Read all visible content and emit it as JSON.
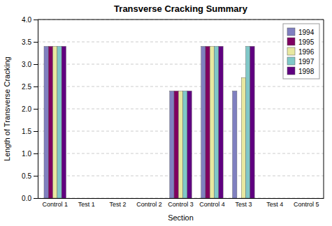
{
  "chart_data": {
    "type": "bar",
    "title": "Transverse Cracking Summary",
    "xlabel": "Section",
    "ylabel": "Length of Transverse Cracking",
    "categories": [
      "Control 1",
      "Test 1",
      "Test 2",
      "Control 2",
      "Control 3",
      "Control 4",
      "Test 3",
      "Test 4",
      "Control 5"
    ],
    "series": [
      {
        "name": "1994",
        "color": "#8080c0",
        "values": [
          3.4,
          0,
          0,
          0,
          2.4,
          3.4,
          2.4,
          0,
          0
        ]
      },
      {
        "name": "1995",
        "color": "#800060",
        "values": [
          3.4,
          0,
          0,
          0,
          2.4,
          3.4,
          0,
          0,
          0
        ]
      },
      {
        "name": "1996",
        "color": "#e8e8a0",
        "values": [
          3.4,
          0,
          0,
          0,
          2.4,
          3.4,
          2.7,
          0,
          0
        ]
      },
      {
        "name": "1997",
        "color": "#80c8c8",
        "values": [
          3.4,
          0,
          0,
          0,
          2.4,
          3.4,
          3.4,
          0,
          0
        ]
      },
      {
        "name": "1998",
        "color": "#600080",
        "values": [
          3.4,
          0,
          0,
          0,
          2.4,
          3.4,
          3.4,
          0,
          0
        ]
      }
    ],
    "ylim": [
      0,
      4.0
    ],
    "yticks": [
      {
        "value": 0.0,
        "label": "0.0"
      },
      0.5,
      {
        "value": 1.0,
        "label": "1.0"
      },
      1.5,
      {
        "value": 2.0,
        "label": "2.0"
      },
      2.5,
      {
        "value": 3.0,
        "label": "3.0"
      },
      3.5,
      {
        "value": 4.0,
        "label": "4.0"
      }
    ],
    "grid": true,
    "legend": "upper right"
  }
}
